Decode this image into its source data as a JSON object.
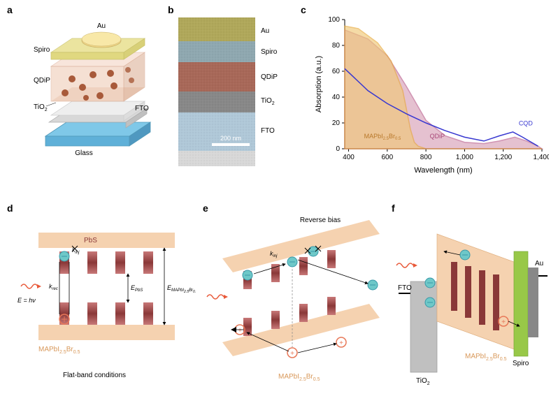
{
  "labels": {
    "a": "a",
    "b": "b",
    "c": "c",
    "d": "d",
    "e": "e",
    "f": "f"
  },
  "panel_a": {
    "layers": {
      "au": "Au",
      "spiro": "Spiro",
      "qdip": "QDiP",
      "tio2": "TiO",
      "tio2_sub": "2",
      "fto": "FTO",
      "glass": "Glass"
    },
    "colors": {
      "au": "#f2d98a",
      "spiro": "#e8e08f",
      "qdip": "#e8c4b0",
      "qdip_dots": "#a85a3a",
      "tio2": "#eeeeee",
      "fto": "#d8d8d8",
      "glass": "#7fc8e8"
    }
  },
  "panel_b": {
    "labels": [
      "Au",
      "Spiro",
      "QDiP",
      "TiO",
      "FTO"
    ],
    "tio2_sub": "2",
    "scalebar": "200 nm",
    "layer_colors": [
      "#b0a85a",
      "#8fa8b0",
      "#a86858",
      "#888888",
      "#b0c8d8"
    ]
  },
  "panel_c": {
    "type": "line",
    "xlabel": "Wavelength (nm)",
    "ylabel": "Absorption (a.u.)",
    "xlim": [
      380,
      1400
    ],
    "ylim": [
      0,
      100
    ],
    "xticks": [
      400,
      600,
      800,
      1000,
      1200,
      1400
    ],
    "yticks": [
      0,
      20,
      40,
      60,
      80,
      100
    ],
    "series": {
      "perovskite": {
        "label": "MAPbI",
        "sub": "2.5",
        "label2": "Br",
        "sub2": "0.5",
        "color": "#e8a838",
        "fill": "#f0c878",
        "points": [
          [
            380,
            95
          ],
          [
            450,
            93
          ],
          [
            550,
            82
          ],
          [
            620,
            68
          ],
          [
            680,
            45
          ],
          [
            720,
            15
          ],
          [
            740,
            5
          ],
          [
            760,
            2
          ],
          [
            800,
            0
          ],
          [
            1400,
            0
          ]
        ]
      },
      "qdip": {
        "label": "QDiP",
        "color": "#b85a8a",
        "fill": "#d8a0b8",
        "points": [
          [
            380,
            92
          ],
          [
            500,
            85
          ],
          [
            600,
            72
          ],
          [
            700,
            48
          ],
          [
            800,
            22
          ],
          [
            900,
            10
          ],
          [
            1000,
            5
          ],
          [
            1100,
            4
          ],
          [
            1180,
            6
          ],
          [
            1260,
            9
          ],
          [
            1320,
            6
          ],
          [
            1380,
            2
          ],
          [
            1400,
            0
          ]
        ]
      },
      "cqd": {
        "label": "CQD",
        "color": "#3838d0",
        "points": [
          [
            380,
            62
          ],
          [
            500,
            45
          ],
          [
            600,
            35
          ],
          [
            700,
            27
          ],
          [
            800,
            20
          ],
          [
            900,
            14
          ],
          [
            1000,
            9
          ],
          [
            1100,
            6
          ],
          [
            1180,
            10
          ],
          [
            1250,
            13
          ],
          [
            1300,
            9
          ],
          [
            1380,
            2
          ]
        ]
      }
    },
    "label_fontsize": 11,
    "tick_fontsize": 10
  },
  "panel_d": {
    "title": "Flat-band conditions",
    "matrix_color": "#f5d2b0",
    "pbs_color": "#8a3838",
    "pbs_label": "PbS",
    "photon_label": "E = h",
    "photon_greek": "ν",
    "k_inj": "k",
    "k_inj_sub": "inj",
    "k_rec": "k",
    "k_rec_sub": "rec",
    "e_pbs": "E",
    "e_pbs_sub": "PbS",
    "e_matrix": "E",
    "e_matrix_sub": "MAPbI",
    "e_matrix_sub2": "2.5",
    "e_matrix_sub3": "Br",
    "e_matrix_sub4": "0.5",
    "matrix_label": "MAPbI",
    "matrix_sub": "2.5",
    "matrix_label2": "Br",
    "matrix_sub2": "0.5",
    "electron_color": "#6ec8c8",
    "hole_color": "#e87858"
  },
  "panel_e": {
    "title": "Reverse bias",
    "matrix_color": "#f5d2b0",
    "pbs_color": "#8a3838",
    "k_inj": "k",
    "k_inj_sub": "inj",
    "matrix_label": "MAPbI",
    "matrix_sub": "2.5",
    "matrix_label2": "Br",
    "matrix_sub2": "0.5",
    "electron_color": "#6ec8c8",
    "hole_color": "#e87858"
  },
  "panel_f": {
    "fto_label": "FTO",
    "tio2_label": "TiO",
    "tio2_sub": "2",
    "spiro_label": "Spiro",
    "au_label": "Au",
    "matrix_label": "MAPbI",
    "matrix_sub": "2.5",
    "matrix_label2": "Br",
    "matrix_sub2": "0.5",
    "tio2_color": "#c0c0c0",
    "matrix_color": "#f5d2b0",
    "spiro_color": "#98c848",
    "au_color": "#888888",
    "pbs_color": "#8a3838",
    "electron_color": "#6ec8c8",
    "hole_color": "#e87858"
  },
  "photon_color": "#e85838"
}
